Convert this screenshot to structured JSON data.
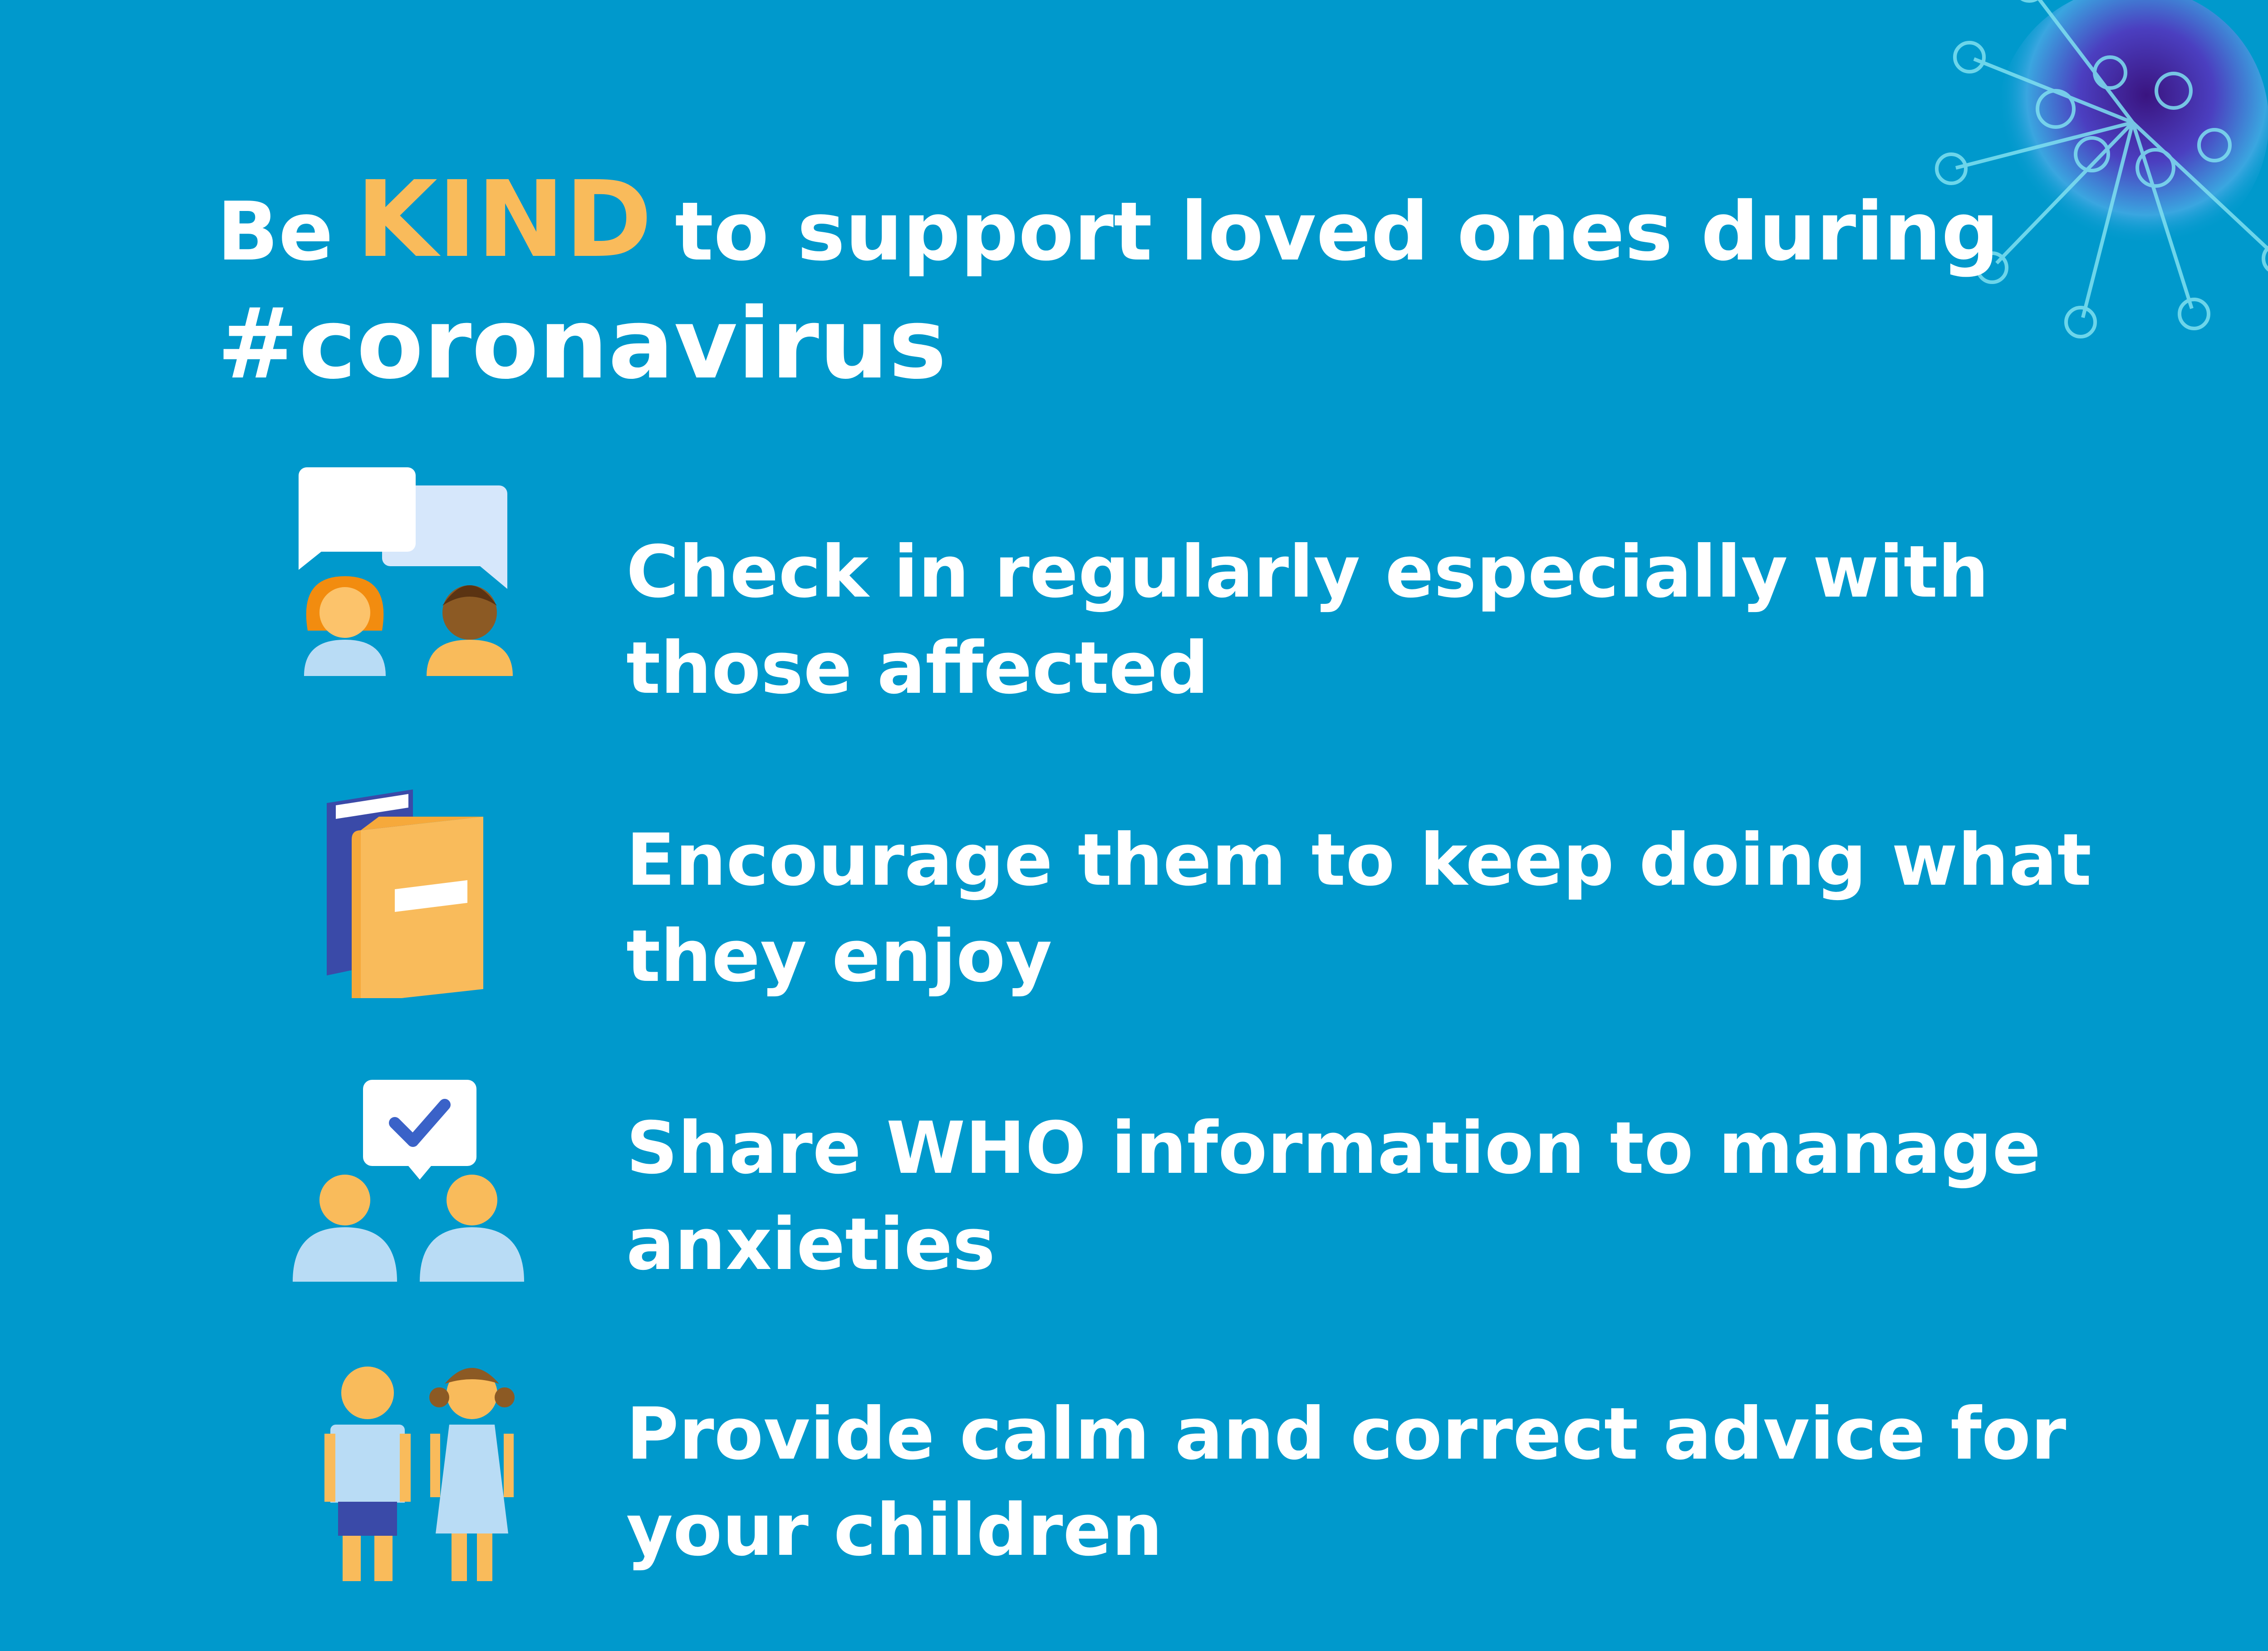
{
  "headline": {
    "before_kind": "Be",
    "kind": "KIND",
    "after_kind": "to support loved ones during",
    "hashtag": "#coronavirus"
  },
  "tips": [
    {
      "text": "Check in regularly especially with those affected",
      "icon": "chat-people-icon"
    },
    {
      "text": "Encourage them to keep doing what they enjoy",
      "icon": "books-icon"
    },
    {
      "text": "Share WHO information to manage anxieties",
      "icon": "share-check-people-icon"
    },
    {
      "text": "Provide calm and correct advice for your children",
      "icon": "children-icon"
    }
  ],
  "colors": {
    "background": "#0099cc",
    "accent": "#f9bb5b",
    "text": "#ffffff",
    "light_blue": "#b9dcf5",
    "navy": "#3a4aa8"
  }
}
